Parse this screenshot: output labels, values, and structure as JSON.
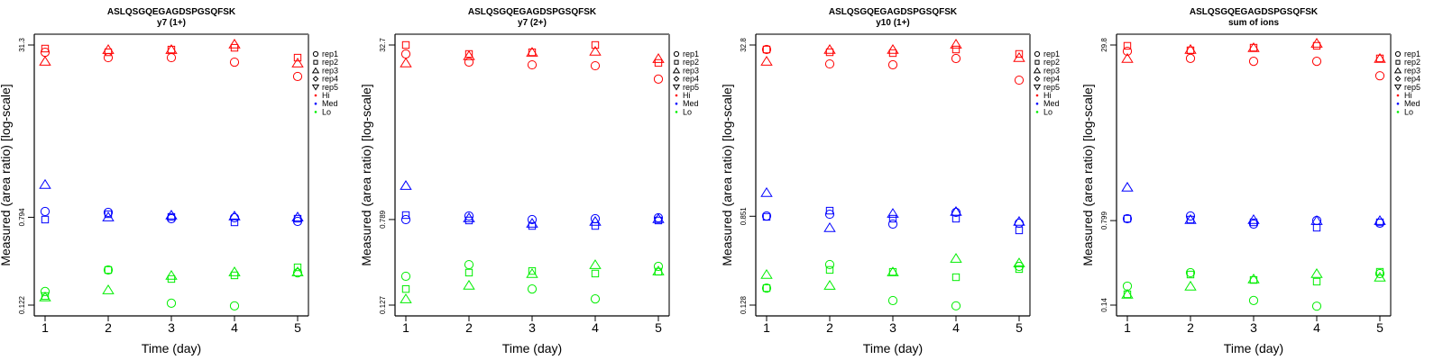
{
  "chart_data": [
    {
      "type": "scatter",
      "title": "ASLQSGQEGAGDSPGSQFSK",
      "subtitle": "y7 (1+)",
      "xlabel": "Time (day)",
      "ylabel": "Measured (area ratio) [log-scale]",
      "yscale": "log",
      "ylim": [
        0.122,
        31.3
      ],
      "yticks": [
        "31.3",
        "0.794",
        "0.122"
      ],
      "yticks_values": [
        31.3,
        0.794,
        0.122
      ],
      "xticks": [
        "1",
        "2",
        "3",
        "4",
        "5"
      ],
      "x": [
        1,
        2,
        3,
        4,
        5
      ],
      "series": [
        {
          "name": "Hi rep1",
          "group": "Hi",
          "rep": "rep1",
          "values": [
            26.8,
            23.9,
            23.9,
            21.7,
            16.0
          ]
        },
        {
          "name": "Hi rep2",
          "group": "Hi",
          "rep": "rep2",
          "values": [
            29.0,
            26.8,
            28.4,
            29.5,
            23.9
          ]
        },
        {
          "name": "Hi rep3",
          "group": "Hi",
          "rep": "rep3",
          "values": [
            22.1,
            28.4,
            28.4,
            31.9,
            21.3
          ]
        },
        {
          "name": "Med rep1",
          "group": "Med",
          "rep": "rep1",
          "values": [
            0.898,
            0.881,
            0.77,
            0.785,
            0.727
          ]
        },
        {
          "name": "Med rep2",
          "group": "Med",
          "rep": "rep2",
          "values": [
            0.756,
            0.848,
            0.8,
            0.713,
            0.77
          ]
        },
        {
          "name": "Med rep3",
          "group": "Med",
          "rep": "rep3",
          "values": [
            1.6,
            0.8,
            0.832,
            0.816,
            0.8
          ]
        },
        {
          "name": "Lo rep1",
          "group": "Lo",
          "rep": "rep1",
          "values": [
            0.163,
            0.258,
            0.127,
            0.12,
            0.243
          ]
        },
        {
          "name": "Lo rep2",
          "group": "Lo",
          "rep": "rep2",
          "values": [
            0.148,
            0.258,
            0.213,
            0.23,
            0.273
          ]
        },
        {
          "name": "Lo rep3",
          "group": "Lo",
          "rep": "rep3",
          "values": [
            0.145,
            0.169,
            0.23,
            0.248,
            0.248
          ]
        }
      ]
    },
    {
      "type": "scatter",
      "title": "ASLQSGQEGAGDSPGSQFSK",
      "subtitle": "y7 (2+)",
      "xlabel": "Time (day)",
      "ylabel": "Measured (area ratio) [log-scale]",
      "yscale": "log",
      "ylim": [
        0.127,
        32.7
      ],
      "yticks": [
        "32.7",
        "0.789",
        "0.127"
      ],
      "yticks_values": [
        32.7,
        0.789,
        0.127
      ],
      "xticks": [
        "1",
        "2",
        "3",
        "4",
        "5"
      ],
      "x": [
        1,
        2,
        3,
        4,
        5
      ],
      "series": [
        {
          "name": "Hi rep1",
          "group": "Hi",
          "rep": "rep1",
          "values": [
            27.0,
            22.7,
            21.4,
            21.0,
            15.8
          ]
        },
        {
          "name": "Hi rep2",
          "group": "Hi",
          "rep": "rep2",
          "values": [
            32.7,
            27.0,
            28.0,
            32.7,
            22.3
          ]
        },
        {
          "name": "Hi rep3",
          "group": "Hi",
          "rep": "rep3",
          "values": [
            22.3,
            26.0,
            28.0,
            28.6,
            24.5
          ]
        },
        {
          "name": "Med rep1",
          "group": "Med",
          "rep": "rep1",
          "values": [
            0.787,
            0.85,
            0.787,
            0.803,
            0.818
          ]
        },
        {
          "name": "Med rep2",
          "group": "Med",
          "rep": "rep2",
          "values": [
            0.867,
            0.773,
            0.688,
            0.688,
            0.773
          ]
        },
        {
          "name": "Med rep3",
          "group": "Med",
          "rep": "rep3",
          "values": [
            1.63,
            0.818,
            0.729,
            0.758,
            0.803
          ]
        },
        {
          "name": "Lo rep1",
          "group": "Lo",
          "rep": "rep1",
          "values": [
            0.235,
            0.301,
            0.179,
            0.145,
            0.29
          ]
        },
        {
          "name": "Lo rep2",
          "group": "Lo",
          "rep": "rep2",
          "values": [
            0.179,
            0.254,
            0.263,
            0.249,
            0.259
          ]
        },
        {
          "name": "Lo rep3",
          "group": "Lo",
          "rep": "rep3",
          "values": [
            0.145,
            0.194,
            0.249,
            0.301,
            0.263
          ]
        }
      ]
    },
    {
      "type": "scatter",
      "title": "ASLQSGQEGAGDSPGSQFSK",
      "subtitle": "y10 (1+)",
      "xlabel": "Time (day)",
      "ylabel": "Measured (area ratio) [log-scale]",
      "yscale": "log",
      "ylim": [
        0.128,
        32.8
      ],
      "yticks": [
        "32.8",
        "0.851",
        "0.128"
      ],
      "yticks_values": [
        32.8,
        0.851,
        0.128
      ],
      "xticks": [
        "1",
        "2",
        "3",
        "4",
        "5"
      ],
      "x": [
        1,
        2,
        3,
        4,
        5
      ],
      "series": [
        {
          "name": "Hi rep1",
          "group": "Hi",
          "rep": "rep1",
          "values": [
            29.8,
            21.9,
            21.5,
            24.6,
            15.5
          ]
        },
        {
          "name": "Hi rep2",
          "group": "Hi",
          "rep": "rep2",
          "values": [
            29.8,
            28.1,
            27.6,
            29.8,
            27.1
          ]
        },
        {
          "name": "Hi rep3",
          "group": "Hi",
          "rep": "rep3",
          "values": [
            23.2,
            29.8,
            29.8,
            33.4,
            25.1
          ]
        },
        {
          "name": "Med rep1",
          "group": "Med",
          "rep": "rep1",
          "values": [
            0.856,
            0.888,
            0.72,
            0.924,
            0.734
          ]
        },
        {
          "name": "Med rep2",
          "group": "Med",
          "rep": "rep2",
          "values": [
            0.84,
            0.959,
            0.808,
            0.808,
            0.63
          ]
        },
        {
          "name": "Med rep3",
          "group": "Med",
          "rep": "rep3",
          "values": [
            1.41,
            0.667,
            0.905,
            0.942,
            0.763
          ]
        },
        {
          "name": "Lo rep1",
          "group": "Lo",
          "rep": "rep1",
          "values": [
            0.184,
            0.304,
            0.141,
            0.126,
            0.292
          ]
        },
        {
          "name": "Lo rep2",
          "group": "Lo",
          "rep": "rep2",
          "values": [
            0.184,
            0.271,
            0.26,
            0.232,
            0.276
          ]
        },
        {
          "name": "Lo rep3",
          "group": "Lo",
          "rep": "rep3",
          "values": [
            0.246,
            0.195,
            0.26,
            0.347,
            0.315
          ]
        }
      ]
    },
    {
      "type": "scatter",
      "title": "ASLQSGQEGAGDSPGSQFSK",
      "subtitle": "sum of ions",
      "xlabel": "Time (day)",
      "ylabel": "Measured (area ratio) [log-scale]",
      "yscale": "log",
      "ylim": [
        0.14,
        29.8
      ],
      "yticks": [
        "29.8",
        "0.799",
        "0.14"
      ],
      "yticks_values": [
        29.8,
        0.799,
        0.14
      ],
      "xticks": [
        "1",
        "2",
        "3",
        "4",
        "5"
      ],
      "x": [
        1,
        2,
        3,
        4,
        5
      ],
      "series": [
        {
          "name": "Hi rep1",
          "group": "Hi",
          "rep": "rep1",
          "values": [
            26.2,
            22.6,
            21.3,
            21.3,
            15.8
          ]
        },
        {
          "name": "Hi rep2",
          "group": "Hi",
          "rep": "rep2",
          "values": [
            29.3,
            26.7,
            28.2,
            29.3,
            22.6
          ]
        },
        {
          "name": "Hi rep3",
          "group": "Hi",
          "rep": "rep3",
          "values": [
            22.6,
            27.2,
            28.2,
            30.9,
            22.6
          ]
        },
        {
          "name": "Med rep1",
          "group": "Med",
          "rep": "rep1",
          "values": [
            0.831,
            0.878,
            0.743,
            0.8,
            0.757
          ]
        },
        {
          "name": "Med rep2",
          "group": "Med",
          "rep": "rep2",
          "values": [
            0.831,
            0.816,
            0.771,
            0.69,
            0.771
          ]
        },
        {
          "name": "Med rep3",
          "group": "Med",
          "rep": "rep3",
          "values": [
            1.59,
            0.816,
            0.816,
            0.8,
            0.8
          ]
        },
        {
          "name": "Lo rep1",
          "group": "Lo",
          "rep": "rep1",
          "values": [
            0.207,
            0.273,
            0.154,
            0.137,
            0.268
          ]
        },
        {
          "name": "Lo rep2",
          "group": "Lo",
          "rep": "rep2",
          "values": [
            0.175,
            0.263,
            0.235,
            0.227,
            0.278
          ]
        },
        {
          "name": "Lo rep3",
          "group": "Lo",
          "rep": "rep3",
          "values": [
            0.175,
            0.207,
            0.24,
            0.268,
            0.249
          ]
        }
      ]
    }
  ],
  "legend": {
    "placement": "right",
    "shapes": [
      {
        "label": "rep1",
        "icon": "circle-icon"
      },
      {
        "label": "rep2",
        "icon": "square-icon"
      },
      {
        "label": "rep3",
        "icon": "triangle-up-icon"
      },
      {
        "label": "rep4",
        "icon": "diamond-icon"
      },
      {
        "label": "rep5",
        "icon": "triangle-down-icon"
      }
    ],
    "groups": [
      {
        "label": "Hi",
        "color": "#ff0000"
      },
      {
        "label": "Med",
        "color": "#0000ff"
      },
      {
        "label": "Lo",
        "color": "#00ee00"
      }
    ]
  },
  "colors": {
    "Hi": "#ff0000",
    "Med": "#0000ff",
    "Lo": "#00ee00"
  }
}
